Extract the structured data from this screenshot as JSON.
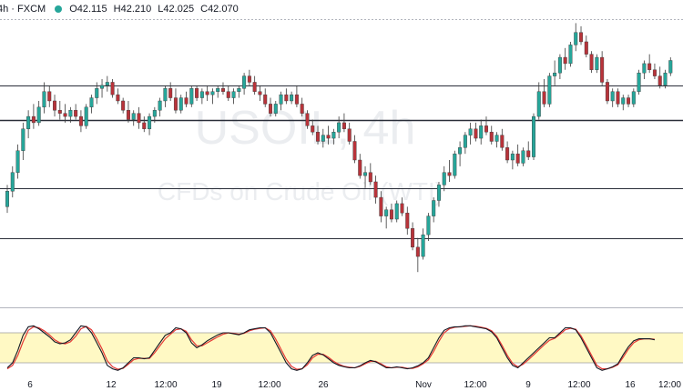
{
  "legend": {
    "symbol": "4h · FXCM",
    "status_color": "#26a69a",
    "open": "O42.115",
    "high": "H42.210",
    "low": "L42.025",
    "close": "C42.070"
  },
  "watermark": {
    "title": "USOIL, 4h",
    "subtitle": "CFDs on Crude Oil (WTI)"
  },
  "colors": {
    "up": "#26a69a",
    "down": "#b8333a",
    "wick": "#3a3a3a",
    "k_line": "#131722",
    "d_line": "#e53935",
    "stoch_band": "#fff9c4",
    "level_line": "#2a2e39"
  },
  "chart_data": [
    {
      "type": "candlestick",
      "title": "",
      "xlabel": "",
      "ylabel": "",
      "x_tick_labels": [
        "6",
        "12",
        "12:00",
        "19",
        "12:00",
        "26",
        "Nov",
        "12:00",
        "9",
        "12:00",
        "16",
        "12:00"
      ],
      "ylim": [
        33.5,
        42.5
      ],
      "horizontal_levels": [
        40.4,
        39.3,
        37.1,
        35.5
      ],
      "grid": false,
      "series": [
        {
          "name": "",
          "candles": [
            [
              36.5,
              37.2,
              36.3,
              37.0
            ],
            [
              37.0,
              37.8,
              36.8,
              37.6
            ],
            [
              37.6,
              38.5,
              37.4,
              38.3
            ],
            [
              38.3,
              39.2,
              38.0,
              39.0
            ],
            [
              39.0,
              39.6,
              38.7,
              39.4
            ],
            [
              39.4,
              39.8,
              39.0,
              39.2
            ],
            [
              39.2,
              39.9,
              39.1,
              39.7
            ],
            [
              39.7,
              40.5,
              39.5,
              40.2
            ],
            [
              40.2,
              40.4,
              39.7,
              39.9
            ],
            [
              39.9,
              40.1,
              39.4,
              39.6
            ],
            [
              39.6,
              39.9,
              39.3,
              39.5
            ],
            [
              39.5,
              39.8,
              39.2,
              39.4
            ],
            [
              39.4,
              39.7,
              39.2,
              39.6
            ],
            [
              39.6,
              39.8,
              39.3,
              39.4
            ],
            [
              39.4,
              39.6,
              38.9,
              39.1
            ],
            [
              39.1,
              39.8,
              39.0,
              39.7
            ],
            [
              39.7,
              40.1,
              39.5,
              40.0
            ],
            [
              40.0,
              40.5,
              39.8,
              40.3
            ],
            [
              40.3,
              40.6,
              40.0,
              40.4
            ],
            [
              40.4,
              40.7,
              40.2,
              40.5
            ],
            [
              40.5,
              40.6,
              40.0,
              40.1
            ],
            [
              40.1,
              40.3,
              39.8,
              39.9
            ],
            [
              39.9,
              40.0,
              39.5,
              39.6
            ],
            [
              39.6,
              39.9,
              39.2,
              39.3
            ],
            [
              39.3,
              39.6,
              39.1,
              39.5
            ],
            [
              39.5,
              39.7,
              39.0,
              39.2
            ],
            [
              39.2,
              39.4,
              38.9,
              39.0
            ],
            [
              39.0,
              39.5,
              38.8,
              39.4
            ],
            [
              39.4,
              39.7,
              39.2,
              39.6
            ],
            [
              39.6,
              40.0,
              39.4,
              39.9
            ],
            [
              39.9,
              40.4,
              39.7,
              40.3
            ],
            [
              40.3,
              40.5,
              39.9,
              40.0
            ],
            [
              40.0,
              40.3,
              39.5,
              39.6
            ],
            [
              39.6,
              40.1,
              39.5,
              40.0
            ],
            [
              40.0,
              40.2,
              39.7,
              39.8
            ],
            [
              39.8,
              40.4,
              39.7,
              40.3
            ],
            [
              40.3,
              40.4,
              39.9,
              40.0
            ],
            [
              40.0,
              40.3,
              39.8,
              40.2
            ],
            [
              40.2,
              40.4,
              39.9,
              40.1
            ],
            [
              40.1,
              40.3,
              39.8,
              40.2
            ],
            [
              40.2,
              40.4,
              40.0,
              40.3
            ],
            [
              40.3,
              40.5,
              40.1,
              40.2
            ],
            [
              40.2,
              40.4,
              39.9,
              40.0
            ],
            [
              40.0,
              40.3,
              39.8,
              40.2
            ],
            [
              40.2,
              40.4,
              40.0,
              40.3
            ],
            [
              40.3,
              40.8,
              40.1,
              40.7
            ],
            [
              40.7,
              40.9,
              40.4,
              40.5
            ],
            [
              40.5,
              40.7,
              40.1,
              40.2
            ],
            [
              40.2,
              40.4,
              39.9,
              40.1
            ],
            [
              40.1,
              40.3,
              39.7,
              39.8
            ],
            [
              39.8,
              40.0,
              39.4,
              39.5
            ],
            [
              39.5,
              39.9,
              39.4,
              39.8
            ],
            [
              39.8,
              40.2,
              39.6,
              40.1
            ],
            [
              40.1,
              40.3,
              39.8,
              39.9
            ],
            [
              39.9,
              40.2,
              39.8,
              40.1
            ],
            [
              40.1,
              40.4,
              39.7,
              39.8
            ],
            [
              39.8,
              40.0,
              39.4,
              39.5
            ],
            [
              39.5,
              39.6,
              39.0,
              39.1
            ],
            [
              39.1,
              39.3,
              38.8,
              38.9
            ],
            [
              38.9,
              39.1,
              38.5,
              38.6
            ],
            [
              38.6,
              39.0,
              38.4,
              38.8
            ],
            [
              38.8,
              39.1,
              38.5,
              38.7
            ],
            [
              38.7,
              39.0,
              38.5,
              38.9
            ],
            [
              38.9,
              39.4,
              38.7,
              39.2
            ],
            [
              39.2,
              39.5,
              38.9,
              39.0
            ],
            [
              39.0,
              39.2,
              38.5,
              38.6
            ],
            [
              38.6,
              38.8,
              37.9,
              38.0
            ],
            [
              38.0,
              38.2,
              37.4,
              37.5
            ],
            [
              37.5,
              37.8,
              37.1,
              37.6
            ],
            [
              37.6,
              37.9,
              37.2,
              37.3
            ],
            [
              37.3,
              37.5,
              36.6,
              36.8
            ],
            [
              36.8,
              37.0,
              36.0,
              36.2
            ],
            [
              36.2,
              36.5,
              35.8,
              36.4
            ],
            [
              36.4,
              36.6,
              36.0,
              36.1
            ],
            [
              36.1,
              36.7,
              36.0,
              36.6
            ],
            [
              36.6,
              36.8,
              36.2,
              36.3
            ],
            [
              36.3,
              36.5,
              35.6,
              35.8
            ],
            [
              35.8,
              36.0,
              35.1,
              35.2
            ],
            [
              35.2,
              35.5,
              34.4,
              34.9
            ],
            [
              34.9,
              35.8,
              34.8,
              35.6
            ],
            [
              35.6,
              36.3,
              35.4,
              36.2
            ],
            [
              36.2,
              36.8,
              36.0,
              36.7
            ],
            [
              36.7,
              37.3,
              36.5,
              37.2
            ],
            [
              37.2,
              37.8,
              37.0,
              37.6
            ],
            [
              37.6,
              38.0,
              37.3,
              37.5
            ],
            [
              37.5,
              38.3,
              37.4,
              38.2
            ],
            [
              38.2,
              38.6,
              37.8,
              38.4
            ],
            [
              38.4,
              38.9,
              38.2,
              38.8
            ],
            [
              38.8,
              39.2,
              38.5,
              39.0
            ],
            [
              39.0,
              39.2,
              38.6,
              38.7
            ],
            [
              38.7,
              39.3,
              38.5,
              39.1
            ],
            [
              39.1,
              39.4,
              38.8,
              38.9
            ],
            [
              38.9,
              39.1,
              38.5,
              38.6
            ],
            [
              38.6,
              38.9,
              38.4,
              38.8
            ],
            [
              38.8,
              39.0,
              38.3,
              38.4
            ],
            [
              38.4,
              38.6,
              37.9,
              38.0
            ],
            [
              38.0,
              38.3,
              37.7,
              38.2
            ],
            [
              38.2,
              38.5,
              37.8,
              37.9
            ],
            [
              37.9,
              38.4,
              37.8,
              38.3
            ],
            [
              38.3,
              38.6,
              38.0,
              38.1
            ],
            [
              38.1,
              39.5,
              38.0,
              39.4
            ],
            [
              39.4,
              40.5,
              39.3,
              40.2
            ],
            [
              40.2,
              40.6,
              39.7,
              39.8
            ],
            [
              39.8,
              40.8,
              39.7,
              40.7
            ],
            [
              40.7,
              41.2,
              40.4,
              40.8
            ],
            [
              40.8,
              41.4,
              40.6,
              41.3
            ],
            [
              41.3,
              41.6,
              40.9,
              41.1
            ],
            [
              41.1,
              41.8,
              41.0,
              41.7
            ],
            [
              41.7,
              42.4,
              41.5,
              42.1
            ],
            [
              42.1,
              42.3,
              41.7,
              41.8
            ],
            [
              41.8,
              42.0,
              41.3,
              41.4
            ],
            [
              41.4,
              41.5,
              40.8,
              40.9
            ],
            [
              40.9,
              41.4,
              40.8,
              41.3
            ],
            [
              41.3,
              41.5,
              40.4,
              40.5
            ],
            [
              40.5,
              40.6,
              39.8,
              39.9
            ],
            [
              39.9,
              40.3,
              39.7,
              40.2
            ],
            [
              40.2,
              40.3,
              39.7,
              39.8
            ],
            [
              39.8,
              40.1,
              39.6,
              40.0
            ],
            [
              40.0,
              40.1,
              39.7,
              39.8
            ],
            [
              39.8,
              40.3,
              39.7,
              40.2
            ],
            [
              40.2,
              40.9,
              40.1,
              40.8
            ],
            [
              40.8,
              41.2,
              40.6,
              41.1
            ],
            [
              41.1,
              41.4,
              40.8,
              40.9
            ],
            [
              40.9,
              41.1,
              40.6,
              40.7
            ],
            [
              40.7,
              41.0,
              40.3,
              40.4
            ],
            [
              40.4,
              40.9,
              40.3,
              40.8
            ],
            [
              40.8,
              41.3,
              40.7,
              41.2
            ]
          ]
        }
      ]
    },
    {
      "type": "line",
      "title": "",
      "xlabel": "",
      "ylabel": "",
      "ylim": [
        0,
        100
      ],
      "bands": [
        20,
        80
      ],
      "series": [
        {
          "name": "",
          "values": [
            10,
            20,
            45,
            75,
            92,
            94,
            88,
            80,
            72,
            62,
            58,
            60,
            66,
            80,
            94,
            92,
            80,
            60,
            40,
            15,
            8,
            5,
            10,
            20,
            30,
            30,
            28,
            30,
            45,
            60,
            75,
            80,
            90,
            88,
            80,
            60,
            50,
            56,
            64,
            70,
            76,
            80,
            80,
            78,
            76,
            80,
            86,
            88,
            90,
            90,
            80,
            60,
            40,
            20,
            8,
            5,
            8,
            20,
            35,
            40,
            36,
            28,
            20,
            15,
            12,
            10,
            10,
            14,
            20,
            25,
            22,
            16,
            10,
            10,
            12,
            10,
            8,
            10,
            14,
            20,
            30,
            50,
            70,
            85,
            90,
            92,
            92,
            94,
            94,
            92,
            90,
            88,
            82,
            70,
            50,
            30,
            15,
            10,
            20,
            30,
            40,
            50,
            60,
            70,
            70,
            80,
            90,
            90,
            86,
            70,
            50,
            30,
            10,
            5,
            8,
            12,
            18,
            36,
            52,
            64,
            68,
            68,
            68,
            66
          ]
        },
        {
          "name": "",
          "values": [
            8,
            15,
            35,
            62,
            85,
            92,
            90,
            84,
            76,
            66,
            60,
            58,
            62,
            73,
            88,
            93,
            86,
            68,
            48,
            24,
            12,
            7,
            9,
            17,
            26,
            29,
            29,
            29,
            40,
            54,
            68,
            77,
            86,
            88,
            83,
            66,
            54,
            54,
            60,
            66,
            72,
            77,
            80,
            79,
            77,
            79,
            84,
            87,
            89,
            90,
            84,
            67,
            47,
            27,
            13,
            7,
            8,
            16,
            30,
            37,
            37,
            31,
            23,
            17,
            13,
            11,
            10,
            13,
            18,
            23,
            23,
            18,
            12,
            10,
            11,
            11,
            9,
            9,
            12,
            18,
            26,
            43,
            63,
            80,
            88,
            91,
            92,
            93,
            94,
            93,
            91,
            89,
            84,
            73,
            55,
            35,
            19,
            12,
            17,
            26,
            36,
            46,
            56,
            65,
            69,
            77,
            86,
            89,
            87,
            74,
            55,
            35,
            15,
            8,
            8,
            11,
            16,
            31,
            47,
            60,
            66,
            68,
            68,
            67
          ]
        }
      ]
    }
  ]
}
